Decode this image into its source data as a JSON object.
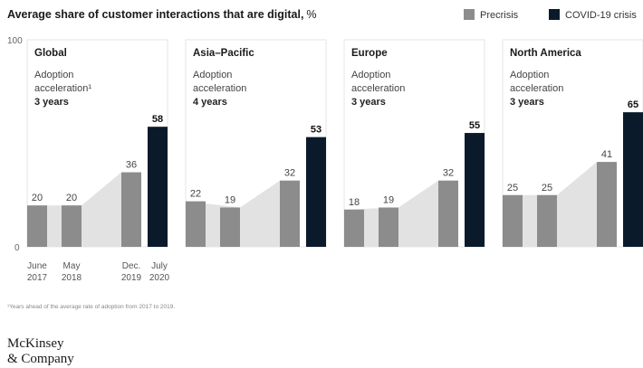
{
  "chart_data": {
    "type": "bar",
    "title": "Average share of customer interactions that are digital,",
    "unit": "%",
    "legend": [
      {
        "name": "Precrisis",
        "color": "#8c8c8c"
      },
      {
        "name": "COVID-19 crisis",
        "color": "#0b1a2b"
      }
    ],
    "ylim": [
      0,
      100
    ],
    "y_ticks": [
      "100",
      "0"
    ],
    "categories": [
      "June 2017",
      "May 2018",
      "Dec. 2019",
      "July 2020"
    ],
    "x_ticks": [
      [
        "June",
        "2017"
      ],
      [
        "May",
        "2018"
      ],
      [
        "Dec.",
        "2019"
      ],
      [
        "July",
        "2020"
      ]
    ],
    "panels": [
      {
        "region": "Global",
        "note": [
          "Adoption",
          "acceleration¹",
          "3 years"
        ],
        "values": [
          20,
          20,
          36,
          58
        ]
      },
      {
        "region": "Asia–Pacific",
        "note": [
          "Adoption",
          "acceleration",
          "4 years"
        ],
        "values": [
          22,
          19,
          32,
          53
        ]
      },
      {
        "region": "Europe",
        "note": [
          "Adoption",
          "acceleration",
          "3 years"
        ],
        "values": [
          18,
          19,
          32,
          55
        ]
      },
      {
        "region": "North America",
        "note": [
          "Adoption",
          "acceleration",
          "3 years"
        ],
        "values": [
          25,
          25,
          41,
          65
        ]
      }
    ],
    "colors": {
      "precrisis": "#8c8c8c",
      "crisis": "#0b1a2b",
      "shade": "#e2e2e2",
      "panel_border": "#e6e6e6"
    }
  },
  "footnote": "¹Years ahead of the average rate of adoption from 2017 to 2019.",
  "logo": [
    "McKinsey",
    "& Company"
  ]
}
